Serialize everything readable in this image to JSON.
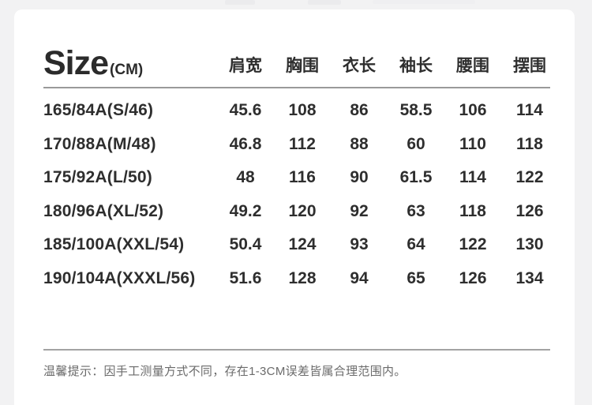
{
  "header": {
    "title": "Size",
    "unit": "(CM)"
  },
  "chart_data": {
    "type": "table",
    "title": "Size (CM)",
    "columns": [
      "肩宽",
      "胸围",
      "衣长",
      "袖长",
      "腰围",
      "摆围"
    ],
    "rows": [
      {
        "label": "165/84A(S/46)",
        "values": [
          "45.6",
          "108",
          "86",
          "58.5",
          "106",
          "114"
        ]
      },
      {
        "label": "170/88A(M/48)",
        "values": [
          "46.8",
          "112",
          "88",
          "60",
          "110",
          "118"
        ]
      },
      {
        "label": "175/92A(L/50)",
        "values": [
          "48",
          "116",
          "90",
          "61.5",
          "114",
          "122"
        ]
      },
      {
        "label": "180/96A(XL/52)",
        "values": [
          "49.2",
          "120",
          "92",
          "63",
          "118",
          "126"
        ]
      },
      {
        "label": "185/100A(XXL/54)",
        "values": [
          "50.4",
          "124",
          "93",
          "64",
          "122",
          "130"
        ]
      },
      {
        "label": "190/104A(XXXL/56)",
        "values": [
          "51.6",
          "128",
          "94",
          "65",
          "126",
          "134"
        ]
      }
    ],
    "layout": {
      "unit": "CM",
      "grid": "off",
      "row_label_column_header": ""
    }
  },
  "footer": {
    "note": "温馨提示：因手工测量方式不同，存在1-3CM误差皆属合理范围内。"
  },
  "colors": {
    "background": "#f2f2f3",
    "card": "#ffffff",
    "text_primary": "#2e2e2e",
    "text_note": "#6b6b6b",
    "divider": "#9a9a9a"
  }
}
